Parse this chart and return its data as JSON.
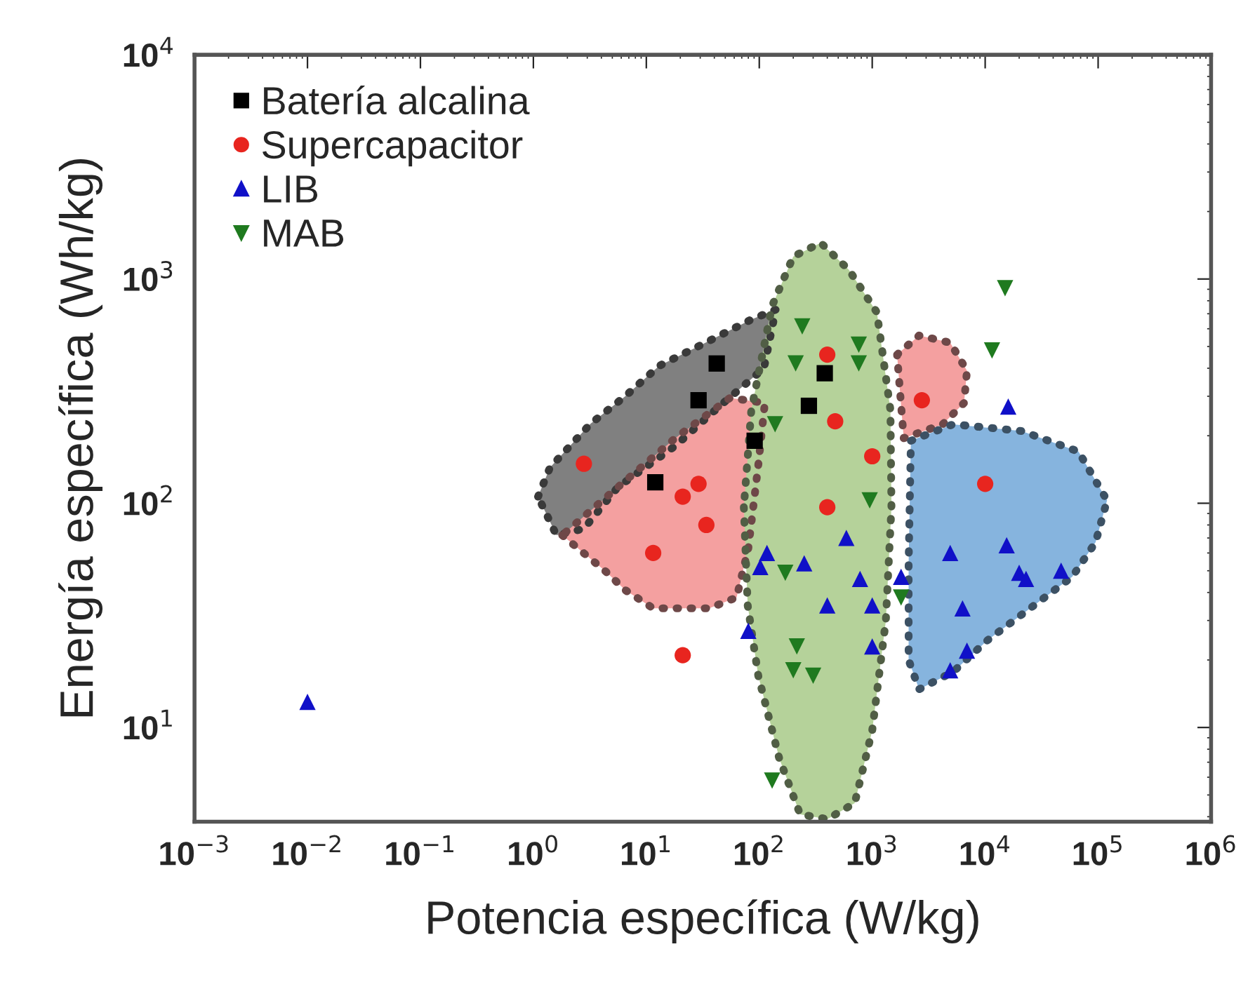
{
  "chart_data": {
    "type": "scatter",
    "xlabel": "Potencia específica (W/kg)",
    "ylabel": "Energía específica (Wh/kg)",
    "log": "xy",
    "xlim": [
      0.001,
      1000000
    ],
    "ylim": [
      3.8,
      10000
    ],
    "xticks": [
      {
        "value": 0.001,
        "label": "10$^{−3}$"
      },
      {
        "value": 0.01,
        "label": "10$^{−2}$"
      },
      {
        "value": 0.1,
        "label": "10$^{−1}$"
      },
      {
        "value": 1,
        "label": "10$^{0}$"
      },
      {
        "value": 10,
        "label": "10$^{1}$"
      },
      {
        "value": 100,
        "label": "10$^{2}$"
      },
      {
        "value": 1000,
        "label": "10$^{3}$"
      },
      {
        "value": 10000,
        "label": "10$^{4}$"
      },
      {
        "value": 100000,
        "label": "10$^{5}$"
      },
      {
        "value": 1000000,
        "label": "10$^{6}$"
      }
    ],
    "yticks": [
      {
        "value": 10,
        "label": "10$^{1}$"
      },
      {
        "value": 100,
        "label": "10$^{2}$"
      },
      {
        "value": 1000,
        "label": "10$^{3}$"
      },
      {
        "value": 10000,
        "label": "10$^{4}$"
      }
    ],
    "grid": false,
    "legend": "top left",
    "series": [
      {
        "type": "area",
        "color": "#808080",
        "x": [
          1.1,
          1.4,
          3.2,
          6.5,
          13,
          31,
          85,
          140,
          110,
          48,
          18,
          5.6,
          2.8,
          1.6
        ],
        "values": [
          107,
          144,
          226,
          300,
          410,
          510,
          660,
          730,
          400,
          280,
          180,
          118,
          77,
          72
        ]
      },
      {
        "type": "area",
        "color": "#f4a0a0",
        "x": [
          1.8,
          4.3,
          6.5,
          11.5,
          36,
          63,
          80,
          98,
          112,
          55,
          18,
          5.6
        ],
        "values": [
          72,
          50,
          41,
          34,
          34,
          38,
          63,
          148,
          280,
          295,
          195,
          118
        ]
      },
      {
        "type": "area",
        "color": "#f4a0a0",
        "x": [
          1660,
          2600,
          4900,
          6900,
          6500,
          4200,
          1900
        ],
        "values": [
          460,
          560,
          520,
          390,
          280,
          225,
          195
        ]
      },
      {
        "type": "area",
        "color": "#86b4de",
        "x": [
          2200,
          5200,
          21000,
          67000,
          120000,
          95000,
          59000,
          25000,
          10500,
          5200,
          2600,
          2100,
          2100
        ],
        "values": [
          190,
          225,
          210,
          170,
          103,
          67,
          47,
          34,
          24.5,
          17.7,
          14.8,
          20,
          54
        ]
      },
      {
        "type": "area",
        "color": "#b5d29a",
        "x": [
          73,
          79,
          98,
          150,
          230,
          400,
          700,
          1000,
          1320,
          1480,
          1450,
          1100,
          620,
          350,
          200,
          130,
          85
        ],
        "values": [
          96,
          35,
          17,
          7.3,
          4.1,
          3.9,
          4.6,
          9.7,
          30,
          96,
          260,
          710,
          1100,
          1450,
          1260,
          760,
          260
        ]
      },
      {
        "name": "Batería alcalina",
        "color": "#000000",
        "marker": "square",
        "x": [
          275,
          380,
          42,
          29,
          12,
          91
        ],
        "values": [
          272,
          380,
          420,
          288,
          124,
          190
        ]
      },
      {
        "name": "Supercapacitor",
        "color": "#e8251f",
        "marker": "circle",
        "x": [
          2.8,
          21,
          21,
          29,
          34,
          11.5,
          470,
          1000,
          400,
          400,
          2750,
          10000
        ],
        "values": [
          150,
          21,
          107,
          122,
          80,
          60,
          232,
          162,
          96,
          460,
          288,
          122
        ]
      },
      {
        "name": "LIB",
        "color": "#1010c8",
        "marker": "triangle",
        "x": [
          0.01,
          590,
          4900,
          15500,
          20000,
          23000,
          47000,
          16000,
          6300,
          6900,
          4900,
          400,
          1000,
          1000,
          780,
          1800,
          250,
          117,
          102,
          80
        ],
        "values": [
          13,
          70,
          60,
          65,
          49,
          46,
          50,
          270,
          34,
          22,
          18,
          35,
          35,
          23,
          46,
          47,
          54,
          60,
          52,
          27
        ]
      },
      {
        "name": "MAB",
        "color": "#1f7a1f",
        "marker": "triangle_down",
        "x": [
          15000,
          11500,
          240,
          760,
          760,
          210,
          138,
          950,
          170,
          1800,
          215,
          200,
          300,
          130
        ],
        "values": [
          910,
          480,
          615,
          510,
          420,
          420,
          225,
          103,
          49,
          38,
          23,
          18,
          17,
          5.8
        ]
      }
    ]
  }
}
